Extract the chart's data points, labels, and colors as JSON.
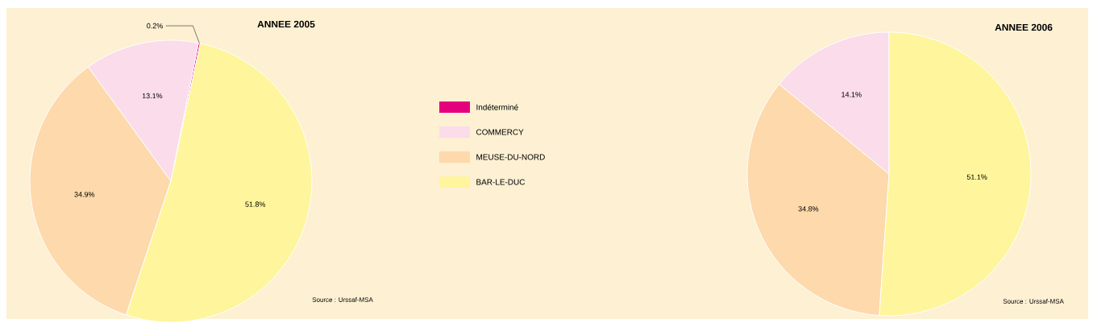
{
  "chart_data": [
    {
      "type": "pie",
      "title": "ANNEE 2005",
      "categories": [
        "Indéterminé",
        "COMMERCY",
        "MEUSE-DU-NORD",
        "BAR-LE-DUC"
      ],
      "values": [
        0.2,
        13.1,
        34.9,
        51.8
      ],
      "colors": [
        "#e5007d",
        "#fadcea",
        "#fdd9ac",
        "#fff59c"
      ],
      "value_labels": [
        "0.2%",
        "13.1%",
        "34.9%",
        "51.8%"
      ],
      "legend": "right",
      "annotations": [
        "Source : Urssaf-MSA"
      ]
    },
    {
      "type": "pie",
      "title": "ANNEE 2006",
      "categories": [
        null,
        null,
        null
      ],
      "values": [
        14.1,
        34.8,
        51.1
      ],
      "colors": [
        "#fadcea",
        "#fdd9ac",
        "#fff59c"
      ],
      "value_labels": [
        "14.1%",
        "34.8%",
        "51.1%"
      ],
      "annotations": [
        "Source : Urssaf-MSA"
      ]
    }
  ]
}
